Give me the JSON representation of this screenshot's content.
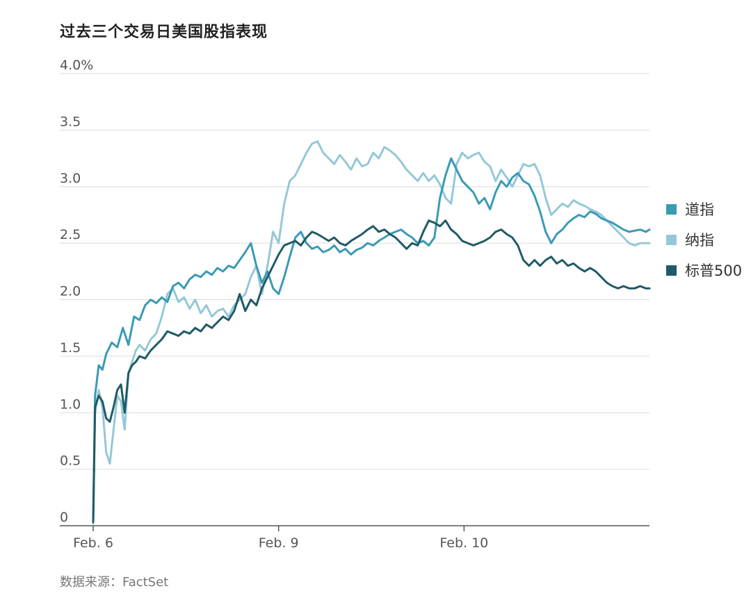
{
  "title": "过去三个交易日美国股指表现",
  "source": "数据来源：FactSet",
  "chart_data": {
    "type": "line",
    "title": "过去三个交易日美国股指表现",
    "xlabel": "",
    "ylabel": "",
    "ylim": [
      0,
      4.0
    ],
    "xlim": [
      0,
      3
    ],
    "y_ticks": [
      {
        "value": 0,
        "label": "0"
      },
      {
        "value": 0.5,
        "label": "0.5"
      },
      {
        "value": 1.0,
        "label": "1.0"
      },
      {
        "value": 1.5,
        "label": "1.5"
      },
      {
        "value": 2.0,
        "label": "2.0"
      },
      {
        "value": 2.5,
        "label": "2.5"
      },
      {
        "value": 3.0,
        "label": "3.0"
      },
      {
        "value": 3.5,
        "label": "3.5"
      },
      {
        "value": 4.0,
        "label": "4.0%"
      }
    ],
    "x_ticks": [
      {
        "value": 0,
        "label": "Feb. 6"
      },
      {
        "value": 1,
        "label": "Feb. 9"
      },
      {
        "value": 2,
        "label": "Feb. 10"
      }
    ],
    "grid": true,
    "legend_position": "right",
    "series": [
      {
        "name": "道指",
        "color": "#3a9ab4",
        "x": [
          0,
          0.01,
          0.03,
          0.05,
          0.07,
          0.1,
          0.13,
          0.16,
          0.19,
          0.22,
          0.25,
          0.28,
          0.31,
          0.34,
          0.37,
          0.4,
          0.43,
          0.46,
          0.49,
          0.52,
          0.55,
          0.58,
          0.61,
          0.64,
          0.67,
          0.7,
          0.73,
          0.76,
          0.79,
          0.82,
          0.85,
          0.88,
          0.91,
          0.94,
          0.97,
          1.0,
          1.03,
          1.06,
          1.09,
          1.12,
          1.15,
          1.18,
          1.21,
          1.24,
          1.27,
          1.3,
          1.33,
          1.36,
          1.39,
          1.42,
          1.45,
          1.48,
          1.51,
          1.54,
          1.57,
          1.6,
          1.63,
          1.66,
          1.69,
          1.72,
          1.75,
          1.78,
          1.81,
          1.84,
          1.87,
          1.9,
          1.93,
          1.96,
          1.99,
          2.02,
          2.05,
          2.08,
          2.11,
          2.14,
          2.17,
          2.2,
          2.23,
          2.26,
          2.29,
          2.32,
          2.35,
          2.38,
          2.41,
          2.44,
          2.47,
          2.5,
          2.53,
          2.56,
          2.59,
          2.62,
          2.65,
          2.68,
          2.71,
          2.74,
          2.77,
          2.8,
          2.83,
          2.86,
          2.89,
          2.92,
          2.95,
          2.98,
          3.0
        ],
        "values": [
          0.05,
          1.15,
          1.42,
          1.38,
          1.52,
          1.62,
          1.58,
          1.75,
          1.6,
          1.85,
          1.82,
          1.95,
          2.0,
          1.97,
          2.02,
          1.98,
          2.12,
          2.15,
          2.1,
          2.18,
          2.22,
          2.2,
          2.25,
          2.22,
          2.28,
          2.25,
          2.3,
          2.28,
          2.35,
          2.42,
          2.5,
          2.3,
          2.15,
          2.25,
          2.1,
          2.05,
          2.2,
          2.38,
          2.55,
          2.6,
          2.5,
          2.45,
          2.47,
          2.42,
          2.44,
          2.48,
          2.42,
          2.45,
          2.4,
          2.44,
          2.46,
          2.5,
          2.48,
          2.52,
          2.55,
          2.58,
          2.6,
          2.62,
          2.58,
          2.55,
          2.5,
          2.52,
          2.48,
          2.55,
          2.9,
          3.1,
          3.25,
          3.15,
          3.05,
          3.0,
          2.95,
          2.85,
          2.9,
          2.8,
          2.95,
          3.05,
          3.0,
          3.08,
          3.12,
          3.05,
          3.02,
          2.92,
          2.78,
          2.6,
          2.5,
          2.58,
          2.62,
          2.68,
          2.72,
          2.75,
          2.73,
          2.78,
          2.76,
          2.72,
          2.7,
          2.68,
          2.65,
          2.62,
          2.6,
          2.61,
          2.62,
          2.6,
          2.62
        ]
      },
      {
        "name": "纳指",
        "color": "#94c8d8",
        "x": [
          0,
          0.01,
          0.03,
          0.05,
          0.07,
          0.09,
          0.11,
          0.13,
          0.15,
          0.17,
          0.19,
          0.21,
          0.23,
          0.25,
          0.28,
          0.31,
          0.34,
          0.37,
          0.4,
          0.43,
          0.46,
          0.49,
          0.52,
          0.55,
          0.58,
          0.61,
          0.64,
          0.67,
          0.7,
          0.73,
          0.76,
          0.79,
          0.82,
          0.85,
          0.88,
          0.91,
          0.94,
          0.97,
          1.0,
          1.03,
          1.06,
          1.09,
          1.12,
          1.15,
          1.18,
          1.21,
          1.24,
          1.27,
          1.3,
          1.33,
          1.36,
          1.39,
          1.42,
          1.45,
          1.48,
          1.51,
          1.54,
          1.57,
          1.6,
          1.63,
          1.66,
          1.69,
          1.72,
          1.75,
          1.78,
          1.81,
          1.84,
          1.87,
          1.9,
          1.93,
          1.96,
          1.99,
          2.02,
          2.05,
          2.08,
          2.11,
          2.14,
          2.17,
          2.2,
          2.23,
          2.26,
          2.29,
          2.32,
          2.35,
          2.38,
          2.41,
          2.44,
          2.47,
          2.5,
          2.53,
          2.56,
          2.59,
          2.62,
          2.65,
          2.68,
          2.71,
          2.74,
          2.77,
          2.8,
          2.83,
          2.86,
          2.89,
          2.92,
          2.95,
          2.98,
          3.0
        ],
        "values": [
          0.02,
          1.0,
          1.2,
          1.05,
          0.65,
          0.55,
          0.85,
          1.15,
          1.1,
          0.85,
          1.35,
          1.45,
          1.55,
          1.6,
          1.55,
          1.65,
          1.7,
          1.85,
          2.05,
          2.1,
          1.98,
          2.02,
          1.92,
          2.0,
          1.88,
          1.95,
          1.85,
          1.9,
          1.92,
          1.85,
          1.95,
          2.0,
          2.05,
          2.2,
          2.3,
          2.05,
          2.3,
          2.6,
          2.5,
          2.85,
          3.05,
          3.1,
          3.2,
          3.3,
          3.38,
          3.4,
          3.3,
          3.25,
          3.2,
          3.28,
          3.22,
          3.15,
          3.25,
          3.18,
          3.2,
          3.3,
          3.25,
          3.35,
          3.32,
          3.28,
          3.22,
          3.15,
          3.1,
          3.05,
          3.12,
          3.05,
          3.1,
          3.02,
          2.9,
          2.85,
          3.2,
          3.3,
          3.25,
          3.28,
          3.3,
          3.22,
          3.18,
          3.05,
          3.15,
          3.08,
          3.0,
          3.1,
          3.2,
          3.18,
          3.2,
          3.1,
          2.9,
          2.75,
          2.8,
          2.85,
          2.82,
          2.88,
          2.85,
          2.83,
          2.8,
          2.78,
          2.75,
          2.7,
          2.65,
          2.6,
          2.55,
          2.5,
          2.48,
          2.5,
          2.5,
          2.5
        ]
      },
      {
        "name": "标普500",
        "color": "#1f5a66",
        "x": [
          0,
          0.01,
          0.03,
          0.05,
          0.07,
          0.09,
          0.11,
          0.13,
          0.15,
          0.17,
          0.19,
          0.21,
          0.23,
          0.25,
          0.28,
          0.31,
          0.34,
          0.37,
          0.4,
          0.43,
          0.46,
          0.49,
          0.52,
          0.55,
          0.58,
          0.61,
          0.64,
          0.67,
          0.7,
          0.73,
          0.76,
          0.79,
          0.82,
          0.85,
          0.88,
          0.91,
          0.94,
          0.97,
          1.0,
          1.03,
          1.06,
          1.09,
          1.12,
          1.15,
          1.18,
          1.21,
          1.24,
          1.27,
          1.3,
          1.33,
          1.36,
          1.39,
          1.42,
          1.45,
          1.48,
          1.51,
          1.54,
          1.57,
          1.6,
          1.63,
          1.66,
          1.69,
          1.72,
          1.75,
          1.78,
          1.81,
          1.84,
          1.87,
          1.9,
          1.93,
          1.96,
          1.99,
          2.02,
          2.05,
          2.08,
          2.11,
          2.14,
          2.17,
          2.2,
          2.23,
          2.26,
          2.29,
          2.32,
          2.35,
          2.38,
          2.41,
          2.44,
          2.47,
          2.5,
          2.53,
          2.56,
          2.59,
          2.62,
          2.65,
          2.68,
          2.71,
          2.74,
          2.77,
          2.8,
          2.83,
          2.86,
          2.89,
          2.92,
          2.95,
          2.98,
          3.0
        ],
        "values": [
          0.03,
          1.05,
          1.15,
          1.1,
          0.95,
          0.92,
          1.05,
          1.2,
          1.25,
          1.0,
          1.35,
          1.42,
          1.45,
          1.5,
          1.48,
          1.55,
          1.6,
          1.65,
          1.72,
          1.7,
          1.68,
          1.72,
          1.7,
          1.75,
          1.72,
          1.78,
          1.75,
          1.8,
          1.85,
          1.82,
          1.9,
          2.05,
          1.9,
          2.0,
          1.95,
          2.1,
          2.2,
          2.3,
          2.4,
          2.48,
          2.5,
          2.52,
          2.48,
          2.55,
          2.6,
          2.58,
          2.55,
          2.52,
          2.55,
          2.5,
          2.48,
          2.52,
          2.55,
          2.58,
          2.62,
          2.65,
          2.6,
          2.62,
          2.58,
          2.55,
          2.5,
          2.45,
          2.5,
          2.48,
          2.6,
          2.7,
          2.68,
          2.65,
          2.7,
          2.62,
          2.58,
          2.52,
          2.5,
          2.48,
          2.5,
          2.52,
          2.55,
          2.6,
          2.62,
          2.58,
          2.55,
          2.48,
          2.35,
          2.3,
          2.35,
          2.3,
          2.35,
          2.38,
          2.32,
          2.35,
          2.3,
          2.32,
          2.28,
          2.25,
          2.28,
          2.25,
          2.2,
          2.15,
          2.12,
          2.1,
          2.12,
          2.1,
          2.1,
          2.12,
          2.1,
          2.1
        ]
      }
    ]
  }
}
